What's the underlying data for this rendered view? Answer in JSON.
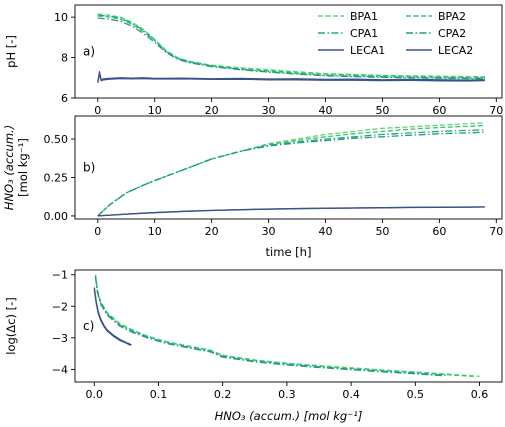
{
  "figure": {
    "series_styles": [
      {
        "name": "BPA1",
        "color": "#5ed477",
        "dash": "dashed"
      },
      {
        "name": "BPA2",
        "color": "#3fc46a",
        "dash": "dashed"
      },
      {
        "name": "CPA1",
        "color": "#22a884",
        "dash": "dashdot"
      },
      {
        "name": "CPA2",
        "color": "#1f9a8a",
        "dash": "dashdot"
      },
      {
        "name": "LECA1",
        "color": "#3b528b",
        "dash": "solid"
      },
      {
        "name": "LECA2",
        "color": "#3b528b",
        "dash": "solid"
      }
    ]
  },
  "chart_data": [
    {
      "type": "line",
      "panel_label": "a)",
      "ylabel": "pH [-]",
      "xlabel": "",
      "xlim": [
        -4,
        71
      ],
      "ylim": [
        6,
        10.6
      ],
      "xticks": [
        0,
        10,
        20,
        30,
        40,
        50,
        60,
        70
      ],
      "yticks": [
        6,
        8,
        10
      ],
      "grid": false,
      "legend": {
        "position": "top-right",
        "columns": 2,
        "order": [
          "BPA1",
          "BPA2",
          "CPA1",
          "CPA2",
          "LECA1",
          "LECA2"
        ]
      },
      "series": [
        {
          "name": "BPA1",
          "x": [
            0,
            2,
            4,
            6,
            8,
            10,
            12,
            14,
            16,
            20,
            25,
            30,
            35,
            40,
            50,
            60,
            68
          ],
          "y": [
            10.15,
            10.1,
            10.0,
            9.75,
            9.4,
            8.9,
            8.35,
            8.0,
            7.82,
            7.62,
            7.5,
            7.4,
            7.3,
            7.2,
            7.12,
            7.08,
            7.05
          ]
        },
        {
          "name": "BPA2",
          "x": [
            0,
            2,
            4,
            6,
            8,
            10,
            12,
            14,
            16,
            20,
            25,
            30,
            35,
            40,
            50,
            60,
            68
          ],
          "y": [
            10.05,
            10.0,
            9.9,
            9.65,
            9.3,
            8.85,
            8.32,
            7.98,
            7.8,
            7.6,
            7.45,
            7.35,
            7.25,
            7.18,
            7.1,
            7.05,
            7.02
          ]
        },
        {
          "name": "CPA1",
          "x": [
            0,
            2,
            4,
            6,
            8,
            10,
            12,
            14,
            16,
            20,
            25,
            30,
            35,
            40,
            50,
            60,
            68
          ],
          "y": [
            10.1,
            10.05,
            9.95,
            9.7,
            9.35,
            8.85,
            8.3,
            7.95,
            7.78,
            7.58,
            7.42,
            7.3,
            7.2,
            7.12,
            7.05,
            7.0,
            6.98
          ]
        },
        {
          "name": "CPA2",
          "x": [
            0,
            2,
            4,
            6,
            8,
            10,
            12,
            14,
            16,
            20,
            25,
            30,
            35,
            40,
            50,
            60,
            68
          ],
          "y": [
            9.95,
            9.9,
            9.8,
            9.55,
            9.2,
            8.75,
            8.25,
            7.92,
            7.75,
            7.55,
            7.4,
            7.28,
            7.18,
            7.1,
            7.02,
            6.98,
            6.95
          ]
        },
        {
          "name": "LECA1",
          "x": [
            0,
            0.3,
            0.6,
            1,
            2,
            4,
            6,
            8,
            10,
            15,
            20,
            25,
            30,
            35,
            40,
            45,
            50,
            55,
            60,
            65,
            68
          ],
          "y": [
            6.8,
            7.3,
            6.9,
            6.95,
            6.97,
            7.0,
            6.98,
            7.0,
            6.97,
            6.98,
            6.95,
            6.97,
            6.94,
            6.95,
            6.92,
            6.93,
            6.9,
            6.92,
            6.9,
            6.88,
            6.9
          ]
        },
        {
          "name": "LECA2",
          "x": [
            0,
            0.3,
            0.6,
            1,
            2,
            4,
            6,
            8,
            10,
            15,
            20,
            25,
            30,
            35,
            40,
            45,
            50,
            55,
            60,
            65,
            68
          ],
          "y": [
            6.75,
            7.2,
            6.85,
            6.9,
            6.93,
            6.96,
            6.95,
            6.96,
            6.94,
            6.95,
            6.92,
            6.93,
            6.9,
            6.9,
            6.88,
            6.88,
            6.86,
            6.87,
            6.85,
            6.84,
            6.86
          ]
        }
      ]
    },
    {
      "type": "line",
      "panel_label": "b)",
      "ylabel": [
        "HNO₃ (accum.)",
        "[mol kg⁻¹]"
      ],
      "xlabel": "time [h]",
      "xlim": [
        -4,
        71
      ],
      "ylim": [
        -0.02,
        0.65
      ],
      "xticks": [
        0,
        10,
        20,
        30,
        40,
        50,
        60,
        70
      ],
      "yticks": [
        0.0,
        0.25,
        0.5
      ],
      "ytick_labels": [
        "0.00",
        "0.25",
        "0.50"
      ],
      "grid": false,
      "series": [
        {
          "name": "BPA1",
          "x": [
            0,
            2,
            5,
            8,
            10,
            15,
            20,
            25,
            30,
            35,
            40,
            45,
            50,
            55,
            60,
            65,
            68
          ],
          "y": [
            0,
            0.07,
            0.15,
            0.2,
            0.23,
            0.3,
            0.37,
            0.42,
            0.47,
            0.5,
            0.53,
            0.55,
            0.57,
            0.58,
            0.59,
            0.6,
            0.605
          ]
        },
        {
          "name": "BPA2",
          "x": [
            0,
            2,
            5,
            8,
            10,
            15,
            20,
            25,
            30,
            35,
            40,
            45,
            50,
            55,
            60,
            65,
            68
          ],
          "y": [
            0,
            0.07,
            0.15,
            0.2,
            0.23,
            0.3,
            0.37,
            0.42,
            0.465,
            0.49,
            0.515,
            0.535,
            0.55,
            0.565,
            0.575,
            0.583,
            0.588
          ]
        },
        {
          "name": "CPA1",
          "x": [
            0,
            2,
            5,
            8,
            10,
            15,
            20,
            25,
            30,
            35,
            40,
            45,
            50,
            55,
            60,
            65,
            68
          ],
          "y": [
            0,
            0.07,
            0.15,
            0.2,
            0.23,
            0.3,
            0.37,
            0.42,
            0.46,
            0.48,
            0.5,
            0.515,
            0.53,
            0.54,
            0.55,
            0.557,
            0.56
          ]
        },
        {
          "name": "CPA2",
          "x": [
            0,
            2,
            5,
            8,
            10,
            15,
            20,
            25,
            30,
            35,
            40,
            45,
            50,
            55,
            60,
            65,
            68
          ],
          "y": [
            0,
            0.07,
            0.15,
            0.2,
            0.23,
            0.3,
            0.37,
            0.42,
            0.455,
            0.475,
            0.49,
            0.505,
            0.515,
            0.525,
            0.535,
            0.54,
            0.545
          ]
        },
        {
          "name": "LECA1",
          "x": [
            0,
            5,
            10,
            15,
            20,
            25,
            30,
            35,
            40,
            45,
            50,
            55,
            60,
            65,
            68
          ],
          "y": [
            0,
            0.012,
            0.022,
            0.03,
            0.036,
            0.041,
            0.045,
            0.048,
            0.05,
            0.052,
            0.054,
            0.056,
            0.057,
            0.058,
            0.059
          ]
        },
        {
          "name": "LECA2",
          "x": [
            0,
            5,
            10,
            15,
            20,
            25,
            30,
            35,
            40,
            45,
            50,
            55,
            60,
            65,
            68
          ],
          "y": [
            0,
            0.011,
            0.021,
            0.029,
            0.035,
            0.04,
            0.044,
            0.047,
            0.049,
            0.051,
            0.053,
            0.055,
            0.056,
            0.057,
            0.058
          ]
        }
      ]
    },
    {
      "type": "line",
      "panel_label": "c)",
      "ylabel": "log(Δc) [-]",
      "xlabel": "HNO₃ (accum.) [mol kg⁻¹]",
      "xlim": [
        -0.03,
        0.635
      ],
      "ylim": [
        -4.4,
        -0.85
      ],
      "xticks": [
        0.0,
        0.1,
        0.2,
        0.3,
        0.4,
        0.5,
        0.6
      ],
      "xtick_labels": [
        "0.0",
        "0.1",
        "0.2",
        "0.3",
        "0.4",
        "0.5",
        "0.6"
      ],
      "yticks": [
        -4,
        -3,
        -2,
        -1
      ],
      "ytick_labels": [
        "−4",
        "−3",
        "−2",
        "−1"
      ],
      "grid": false,
      "series": [
        {
          "name": "BPA1",
          "x": [
            0.002,
            0.005,
            0.01,
            0.02,
            0.04,
            0.06,
            0.08,
            0.1,
            0.12,
            0.15,
            0.18,
            0.2,
            0.25,
            0.3,
            0.35,
            0.4,
            0.45,
            0.5,
            0.55,
            0.6
          ],
          "y": [
            -1.0,
            -1.5,
            -1.85,
            -2.2,
            -2.55,
            -2.75,
            -2.92,
            -3.05,
            -3.15,
            -3.27,
            -3.38,
            -3.55,
            -3.7,
            -3.8,
            -3.88,
            -3.95,
            -4.02,
            -4.08,
            -4.15,
            -4.22
          ]
        },
        {
          "name": "BPA2",
          "x": [
            0.002,
            0.005,
            0.01,
            0.02,
            0.04,
            0.06,
            0.08,
            0.1,
            0.12,
            0.15,
            0.18,
            0.2,
            0.25,
            0.3,
            0.35,
            0.4,
            0.45,
            0.5,
            0.55,
            0.59
          ],
          "y": [
            -1.02,
            -1.52,
            -1.87,
            -2.22,
            -2.57,
            -2.77,
            -2.94,
            -3.07,
            -3.17,
            -3.29,
            -3.4,
            -3.57,
            -3.72,
            -3.82,
            -3.9,
            -3.97,
            -4.04,
            -4.1,
            -4.17,
            -4.22
          ]
        },
        {
          "name": "CPA1",
          "x": [
            0.002,
            0.005,
            0.01,
            0.02,
            0.04,
            0.06,
            0.08,
            0.1,
            0.12,
            0.15,
            0.18,
            0.2,
            0.25,
            0.3,
            0.35,
            0.4,
            0.45,
            0.5,
            0.55
          ],
          "y": [
            -1.05,
            -1.55,
            -1.9,
            -2.25,
            -2.6,
            -2.8,
            -2.96,
            -3.09,
            -3.19,
            -3.31,
            -3.42,
            -3.59,
            -3.74,
            -3.84,
            -3.92,
            -3.99,
            -4.06,
            -4.12,
            -4.19
          ]
        },
        {
          "name": "CPA2",
          "x": [
            0.002,
            0.005,
            0.01,
            0.02,
            0.04,
            0.06,
            0.08,
            0.1,
            0.12,
            0.15,
            0.18,
            0.2,
            0.25,
            0.3,
            0.35,
            0.4,
            0.45,
            0.5,
            0.545
          ],
          "y": [
            -1.08,
            -1.58,
            -1.93,
            -2.28,
            -2.63,
            -2.83,
            -2.98,
            -3.11,
            -3.21,
            -3.33,
            -3.44,
            -3.61,
            -3.76,
            -3.86,
            -3.94,
            -4.01,
            -4.08,
            -4.14,
            -4.2
          ]
        },
        {
          "name": "LECA1",
          "x": [
            0.0,
            0.003,
            0.006,
            0.01,
            0.015,
            0.02,
            0.03,
            0.04,
            0.05,
            0.058
          ],
          "y": [
            -1.4,
            -1.85,
            -2.15,
            -2.4,
            -2.6,
            -2.75,
            -2.92,
            -3.05,
            -3.15,
            -3.22
          ]
        },
        {
          "name": "LECA2",
          "x": [
            0.0,
            0.003,
            0.006,
            0.01,
            0.015,
            0.02,
            0.03,
            0.04,
            0.05,
            0.057
          ],
          "y": [
            -1.45,
            -1.9,
            -2.2,
            -2.45,
            -2.64,
            -2.78,
            -2.95,
            -3.08,
            -3.17,
            -3.24
          ]
        }
      ]
    }
  ]
}
